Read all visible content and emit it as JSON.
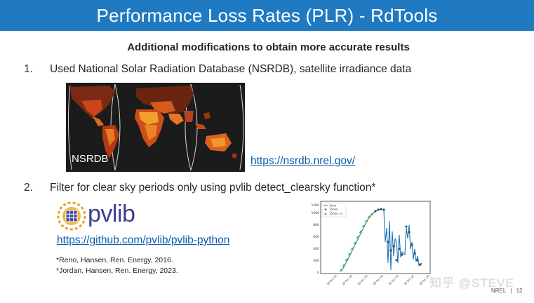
{
  "header": {
    "title": "Performance Loss Rates (PLR) - RdTools"
  },
  "subtitle": "Additional modifications to obtain more accurate results",
  "items": [
    {
      "number": "1.",
      "text": "Used National Solar Radiation Database (NSRDB), satellite irradiance data"
    },
    {
      "number": "2.",
      "text": "Filter for clear sky periods only using pvlib detect_clearsky function*"
    }
  ],
  "map": {
    "label": "NSRDB"
  },
  "links": {
    "nsrdb": "https://nsrdb.nrel.gov/",
    "pvlib": "https://github.com/pvlib/pvlib-python"
  },
  "logo": {
    "text": "pvlib"
  },
  "references": [
    "*Reno, Hansen, Ren. Energy, 2016.",
    "*Jordan, Hansen, Ren. Energy, 2023."
  ],
  "plot": {
    "legend": [
      "1min",
      "15min",
      "15min, cs"
    ],
    "y_ticks": [
      "0",
      "200",
      "400",
      "600",
      "800",
      "1000",
      "1200"
    ],
    "x_ticks": [
      "10 01 14",
      "10 01 14",
      "10 01 14",
      "10 01 14",
      "10 01 14",
      "10 01 14",
      "10 01 14"
    ]
  },
  "watermark": "知乎 @STEVE",
  "footer": {
    "org": "NREL",
    "separator": "|",
    "page": "12"
  },
  "colors": {
    "brand": "#1f7ac2",
    "link": "#0b5cad",
    "line": "#1f77b4",
    "marker": "#3b4a5a",
    "clearsky": "#5cb85c"
  }
}
